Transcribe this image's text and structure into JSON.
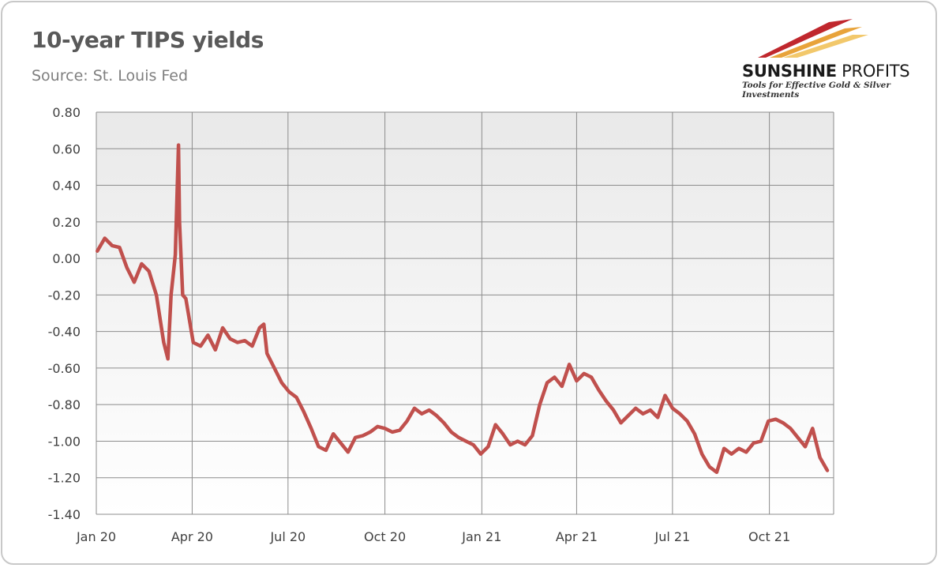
{
  "header": {
    "title": "10-year TIPS yields",
    "subtitle": "Source: St. Louis Fed"
  },
  "logo": {
    "name_bold": "SUNSHINE",
    "name_light": " PROFITS",
    "tagline": "Tools for Effective Gold & Silver Investments",
    "colors": [
      "#c0272d",
      "#e8a33a",
      "#f2c86b"
    ]
  },
  "chart_data": {
    "type": "line",
    "title": "10-year TIPS yields",
    "subtitle": "Source: St. Louis Fed",
    "xlabel": "",
    "ylabel": "",
    "ylim": [
      -1.4,
      0.8
    ],
    "yticks": [
      "0.80",
      "0.60",
      "0.40",
      "0.20",
      "0.00",
      "-0.20",
      "-0.40",
      "-0.60",
      "-0.80",
      "-1.00",
      "-1.20",
      "-1.40"
    ],
    "ytick_values": [
      0.8,
      0.6,
      0.4,
      0.2,
      0.0,
      -0.2,
      -0.4,
      -0.6,
      -0.8,
      -1.0,
      -1.2,
      -1.4
    ],
    "xticks": [
      "Jan 20",
      "Apr 20",
      "Jul 20",
      "Oct 20",
      "Jan 21",
      "Apr 21",
      "Jul 21",
      "Oct 21"
    ],
    "grid": true,
    "line_color": "#c0504d",
    "plot_background": "gradient light gray",
    "series": [
      {
        "x": [
          "2020-01-02",
          "2020-01-09",
          "2020-01-16",
          "2020-01-23",
          "2020-01-30",
          "2020-02-06",
          "2020-02-13",
          "2020-02-20",
          "2020-02-27",
          "2020-03-05",
          "2020-03-09",
          "2020-03-12",
          "2020-03-16",
          "2020-03-19",
          "2020-03-20",
          "2020-03-23",
          "2020-03-26",
          "2020-04-02",
          "2020-04-09",
          "2020-04-16",
          "2020-04-23",
          "2020-04-30",
          "2020-05-07",
          "2020-05-14",
          "2020-05-21",
          "2020-05-28",
          "2020-06-04",
          "2020-06-08",
          "2020-06-11",
          "2020-06-18",
          "2020-06-25",
          "2020-07-02",
          "2020-07-09",
          "2020-07-16",
          "2020-07-23",
          "2020-07-30",
          "2020-08-06",
          "2020-08-13",
          "2020-08-20",
          "2020-08-27",
          "2020-09-03",
          "2020-09-10",
          "2020-09-17",
          "2020-09-24",
          "2020-10-01",
          "2020-10-08",
          "2020-10-15",
          "2020-10-22",
          "2020-10-29",
          "2020-11-05",
          "2020-11-12",
          "2020-11-19",
          "2020-11-26",
          "2020-12-03",
          "2020-12-10",
          "2020-12-17",
          "2020-12-24",
          "2020-12-31",
          "2021-01-07",
          "2021-01-14",
          "2021-01-21",
          "2021-01-28",
          "2021-02-04",
          "2021-02-11",
          "2021-02-18",
          "2021-02-25",
          "2021-03-04",
          "2021-03-11",
          "2021-03-18",
          "2021-03-25",
          "2021-04-01",
          "2021-04-08",
          "2021-04-15",
          "2021-04-22",
          "2021-04-29",
          "2021-05-06",
          "2021-05-13",
          "2021-05-20",
          "2021-05-27",
          "2021-06-03",
          "2021-06-10",
          "2021-06-17",
          "2021-06-24",
          "2021-07-01",
          "2021-07-08",
          "2021-07-15",
          "2021-07-22",
          "2021-07-29",
          "2021-08-05",
          "2021-08-12",
          "2021-08-19",
          "2021-08-26",
          "2021-09-02",
          "2021-09-09",
          "2021-09-16",
          "2021-09-23",
          "2021-09-30",
          "2021-10-07",
          "2021-10-14",
          "2021-10-21",
          "2021-10-28",
          "2021-11-04",
          "2021-11-11",
          "2021-11-18",
          "2021-11-25"
        ],
        "values": [
          0.04,
          0.11,
          0.07,
          0.06,
          -0.05,
          -0.13,
          -0.03,
          -0.07,
          -0.2,
          -0.46,
          -0.55,
          -0.2,
          0.02,
          0.62,
          0.2,
          -0.2,
          -0.22,
          -0.46,
          -0.48,
          -0.42,
          -0.5,
          -0.38,
          -0.44,
          -0.46,
          -0.45,
          -0.48,
          -0.38,
          -0.36,
          -0.52,
          -0.6,
          -0.68,
          -0.73,
          -0.76,
          -0.84,
          -0.93,
          -1.03,
          -1.05,
          -0.96,
          -1.01,
          -1.06,
          -0.98,
          -0.97,
          -0.95,
          -0.92,
          -0.93,
          -0.95,
          -0.94,
          -0.89,
          -0.82,
          -0.85,
          -0.83,
          -0.86,
          -0.9,
          -0.95,
          -0.98,
          -1.0,
          -1.02,
          -1.07,
          -1.03,
          -0.91,
          -0.96,
          -1.02,
          -1.0,
          -1.02,
          -0.97,
          -0.8,
          -0.68,
          -0.65,
          -0.7,
          -0.58,
          -0.67,
          -0.63,
          -0.65,
          -0.72,
          -0.78,
          -0.83,
          -0.9,
          -0.86,
          -0.82,
          -0.85,
          -0.83,
          -0.87,
          -0.75,
          -0.82,
          -0.85,
          -0.89,
          -0.96,
          -1.07,
          -1.14,
          -1.17,
          -1.04,
          -1.07,
          -1.04,
          -1.06,
          -1.01,
          -1.0,
          -0.89,
          -0.88,
          -0.9,
          -0.93,
          -0.98,
          -1.03,
          -0.93,
          -1.09,
          -1.16
        ]
      }
    ]
  }
}
